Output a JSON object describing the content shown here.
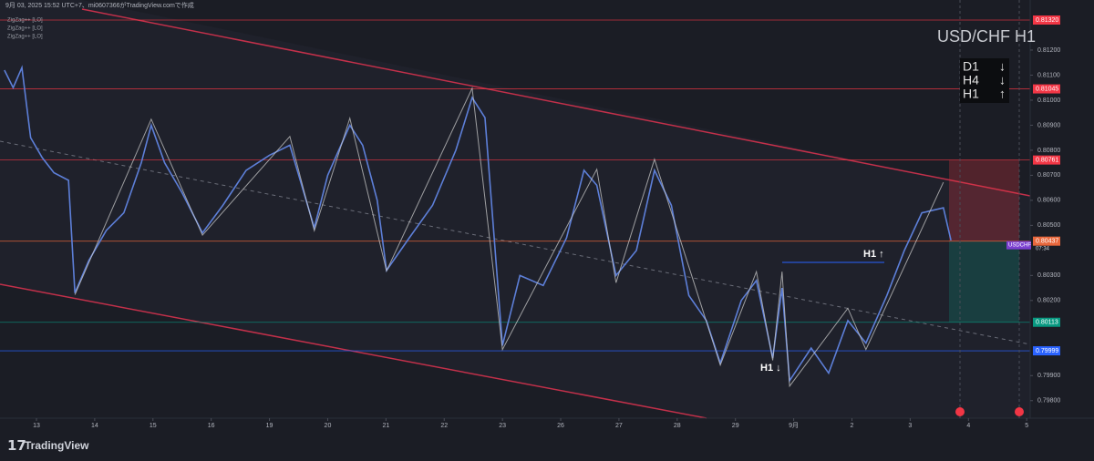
{
  "chart_data": {
    "type": "line",
    "title": "USD/CHF H1",
    "watermark": "9月 03, 2025 15:52 UTC+7、mi0607366がTradingView.comで作成",
    "indicators": [
      "ZigZag++ [LO]",
      "ZigZag++ [LO]",
      "ZigZag++ [LO]"
    ],
    "brand": "TradingView",
    "symbol": "USDCHF",
    "countdown": "07:34",
    "trend_box": [
      {
        "label": "D1",
        "arrow": "↓"
      },
      {
        "label": "H4",
        "arrow": "↓"
      },
      {
        "label": "H1",
        "arrow": "↑"
      }
    ],
    "annotations": [
      "H1 ↑",
      "H1 ↓"
    ],
    "xlim": [
      -0.626,
      17.06
    ],
    "ylim": [
      0.7973,
      0.814
    ],
    "xticks": [
      {
        "value": 0,
        "label": "13"
      },
      {
        "value": 1,
        "label": "14"
      },
      {
        "value": 2,
        "label": "15"
      },
      {
        "value": 3,
        "label": "16"
      },
      {
        "value": 4,
        "label": "19"
      },
      {
        "value": 5,
        "label": "20"
      },
      {
        "value": 6,
        "label": "21"
      },
      {
        "value": 7,
        "label": "22"
      },
      {
        "value": 8,
        "label": "23"
      },
      {
        "value": 9,
        "label": "26"
      },
      {
        "value": 10,
        "label": "27"
      },
      {
        "value": 11,
        "label": "28"
      },
      {
        "value": 12,
        "label": "29"
      },
      {
        "value": 13,
        "label": "9月"
      },
      {
        "value": 14,
        "label": "2"
      },
      {
        "value": 15,
        "label": "3"
      },
      {
        "value": 16,
        "label": "4"
      },
      {
        "value": 17,
        "label": "5"
      }
    ],
    "yticks": [
      {
        "value": 0.812,
        "label": "0.81200"
      },
      {
        "value": 0.811,
        "label": "0.81100"
      },
      {
        "value": 0.81,
        "label": "0.81000"
      },
      {
        "value": 0.809,
        "label": "0.80900"
      },
      {
        "value": 0.808,
        "label": "0.80800"
      },
      {
        "value": 0.807,
        "label": "0.80700"
      },
      {
        "value": 0.806,
        "label": "0.80600"
      },
      {
        "value": 0.805,
        "label": "0.80500"
      },
      {
        "value": 0.803,
        "label": "0.80300"
      },
      {
        "value": 0.802,
        "label": "0.80200"
      },
      {
        "value": 0.799,
        "label": "0.79900"
      },
      {
        "value": 0.798,
        "label": "0.79800"
      }
    ],
    "price_lines": [
      {
        "value": 0.8132,
        "label": "0.81320",
        "color": "#f23645"
      },
      {
        "value": 0.81045,
        "label": "0.81045",
        "color": "#f23645"
      },
      {
        "value": 0.80761,
        "label": "0.80761",
        "color": "#f23645"
      },
      {
        "value": 0.80437,
        "label": "0.80437",
        "color": "#e8673c"
      },
      {
        "value": 0.80113,
        "label": "0.80113",
        "color": "#089981"
      },
      {
        "value": 0.79999,
        "label": "0.79999",
        "color": "#2962ff"
      }
    ],
    "series": [
      {
        "name": "USDCHF",
        "color": "#5d7fd8",
        "x": [
          -0.55,
          -0.4,
          -0.25,
          -0.1,
          0.1,
          0.3,
          0.55,
          0.66,
          0.9,
          1.2,
          1.5,
          1.8,
          1.97,
          2.2,
          2.5,
          2.85,
          3.2,
          3.6,
          4.0,
          4.35,
          4.77,
          5.0,
          5.38,
          5.6,
          5.85,
          6.01,
          6.4,
          6.8,
          7.2,
          7.48,
          7.7,
          8.0,
          8.3,
          8.7,
          9.1,
          9.4,
          9.62,
          9.95,
          10.3,
          10.61,
          10.9,
          11.2,
          11.5,
          11.74,
          12.1,
          12.36,
          12.64,
          12.8,
          12.93,
          13.3,
          13.6,
          13.93,
          14.24,
          14.6,
          14.9,
          15.2,
          15.57,
          15.7
        ],
        "values": [
          0.8112,
          0.8105,
          0.8113,
          0.8085,
          0.8077,
          0.8071,
          0.8068,
          0.8023,
          0.8036,
          0.8048,
          0.8055,
          0.8075,
          0.809,
          0.8075,
          0.8063,
          0.8047,
          0.8058,
          0.8072,
          0.8078,
          0.8082,
          0.8049,
          0.807,
          0.809,
          0.8082,
          0.806,
          0.8032,
          0.8045,
          0.8058,
          0.808,
          0.8101,
          0.8093,
          0.8002,
          0.803,
          0.8026,
          0.8045,
          0.8072,
          0.8066,
          0.803,
          0.804,
          0.8072,
          0.8058,
          0.8022,
          0.8012,
          0.7995,
          0.802,
          0.8028,
          0.7997,
          0.8025,
          0.7988,
          0.8001,
          0.7991,
          0.8012,
          0.8003,
          0.8022,
          0.804,
          0.8055,
          0.8057,
          0.8044
        ]
      },
      {
        "name": "ZigZag++",
        "color": "#c9c9c9",
        "x": [
          0.66,
          1.97,
          2.85,
          4.35,
          4.77,
          5.38,
          6.01,
          7.48,
          8.0,
          9.62,
          9.95,
          10.61,
          11.74,
          12.36,
          12.64,
          12.8,
          12.93,
          13.93,
          14.24,
          15.57
        ],
        "values": [
          0.80223,
          0.80924,
          0.80461,
          0.80855,
          0.80479,
          0.80928,
          0.80318,
          0.81048,
          0.80004,
          0.80724,
          0.80271,
          0.80764,
          0.79942,
          0.80315,
          0.79961,
          0.80315,
          0.79858,
          0.80169,
          0.80004,
          0.80672
        ]
      }
    ]
  }
}
